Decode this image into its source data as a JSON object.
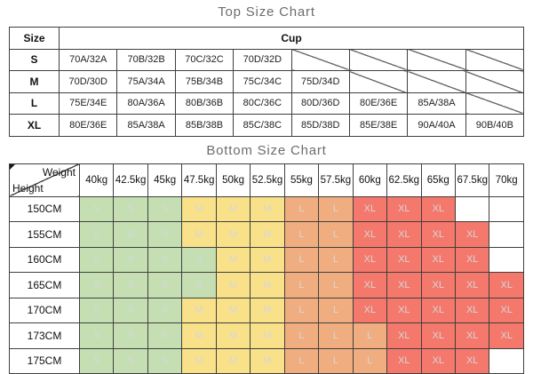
{
  "top_chart": {
    "title": "Top Size Chart",
    "header": {
      "size_label": "Size",
      "cup_label": "Cup"
    },
    "rows": [
      {
        "size": "S",
        "cells": [
          "70A/32A",
          "70B/32B",
          "70C/32C",
          "70D/32D",
          null,
          null,
          null,
          null
        ]
      },
      {
        "size": "M",
        "cells": [
          "70D/30D",
          "75A/34A",
          "75B/34B",
          "75C/34C",
          "75D/34D",
          null,
          null,
          null
        ]
      },
      {
        "size": "L",
        "cells": [
          "75E/34E",
          "80A/36A",
          "80B/36B",
          "80C/36C",
          "80D/36D",
          "80E/36E",
          "85A/38A",
          null
        ]
      },
      {
        "size": "XL",
        "cells": [
          "80E/36E",
          "85A/38A",
          "85B/38B",
          "85C/38C",
          "85D/38D",
          "85E/38E",
          "90A/40A",
          "90B/40B"
        ]
      }
    ]
  },
  "bottom_chart": {
    "title": "Bottom Size Chart",
    "header": {
      "weight_label": "Weight",
      "height_label": "Height"
    },
    "weights": [
      "40kg",
      "42.5kg",
      "45kg",
      "47.5kg",
      "50kg",
      "52.5kg",
      "55kg",
      "57.5kg",
      "60kg",
      "62.5kg",
      "65kg",
      "67.5kg",
      "70kg"
    ],
    "rows": [
      {
        "height": "150CM",
        "sizes": [
          "S",
          "S",
          "S",
          "M",
          "M",
          "M",
          "L",
          "L",
          "XL",
          "XL",
          "XL",
          "",
          ""
        ]
      },
      {
        "height": "155CM",
        "sizes": [
          "S",
          "S",
          "S",
          "M",
          "M",
          "M",
          "L",
          "L",
          "XL",
          "XL",
          "XL",
          "XL",
          ""
        ]
      },
      {
        "height": "160CM",
        "sizes": [
          "S",
          "S",
          "S",
          "S",
          "M",
          "M",
          "L",
          "L",
          "XL",
          "XL",
          "XL",
          "XL",
          ""
        ]
      },
      {
        "height": "165CM",
        "sizes": [
          "S",
          "S",
          "S",
          "S",
          "M",
          "M",
          "L",
          "L",
          "XL",
          "XL",
          "XL",
          "XL",
          "XL"
        ]
      },
      {
        "height": "170CM",
        "sizes": [
          "S",
          "S",
          "S",
          "M",
          "M",
          "M",
          "L",
          "L",
          "XL",
          "XL",
          "XL",
          "XL",
          "XL"
        ]
      },
      {
        "height": "173CM",
        "sizes": [
          "S",
          "S",
          "S",
          "M",
          "M",
          "M",
          "L",
          "L",
          "L",
          "XL",
          "XL",
          "XL",
          "XL"
        ]
      },
      {
        "height": "175CM",
        "sizes": [
          "S",
          "S",
          "S",
          "M",
          "M",
          "M",
          "L",
          "L",
          "L",
          "XL",
          "XL",
          "XL",
          ""
        ]
      }
    ],
    "size_colors": {
      "S": "#c5dfb3",
      "M": "#f9e18a",
      "L": "#f0ae80",
      "XL": "#f4786b",
      "": "#ffffff"
    },
    "cell_text_color": "#d7d7d7",
    "border_color": "#3f3f3f"
  }
}
